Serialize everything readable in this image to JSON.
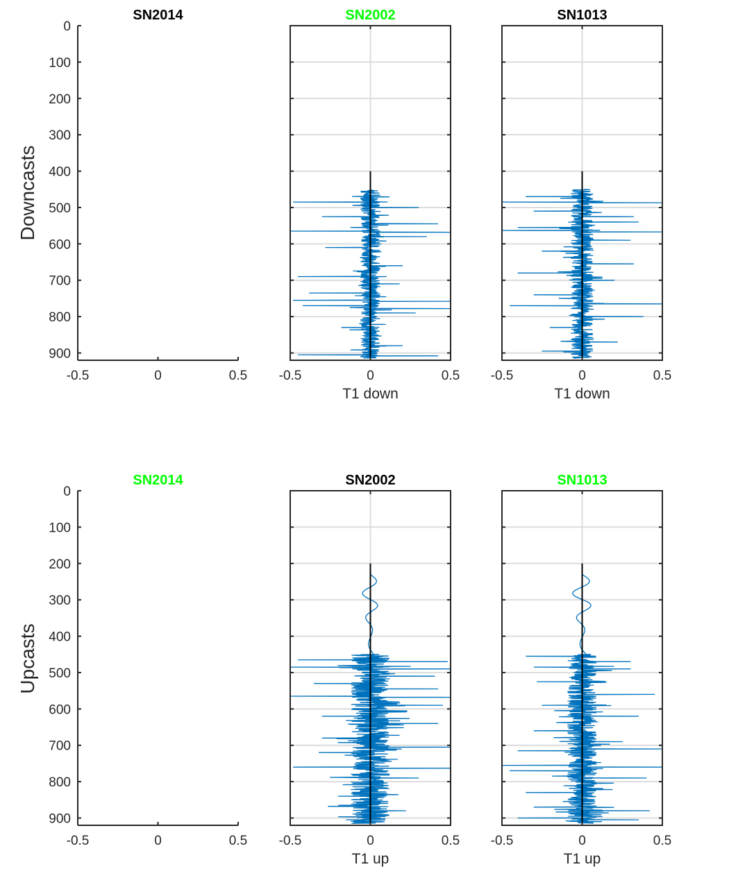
{
  "figure": {
    "row_labels": [
      "Downcasts",
      "Upcasts"
    ],
    "line_color": "#0072BD",
    "highlight_color": "#00FF00",
    "title_color": "#000000"
  },
  "chart_data": [
    {
      "type": "line",
      "row": 0,
      "col": 0,
      "title": "SN2014",
      "title_highlight": false,
      "xlabel": "",
      "ylabel": "Downcasts",
      "xlim": [
        -0.5,
        0.5
      ],
      "ylim": [
        920,
        0
      ],
      "xticks": [
        "-0.5",
        "0",
        "0.5"
      ],
      "yticks": [
        "0",
        "100",
        "200",
        "300",
        "400",
        "500",
        "600",
        "700",
        "800",
        "900"
      ],
      "box": false,
      "grid": false,
      "series": []
    },
    {
      "type": "line",
      "row": 0,
      "col": 1,
      "title": "SN2002",
      "title_highlight": true,
      "xlabel": "T1 down",
      "ylabel": "",
      "xlim": [
        -0.5,
        0.5
      ],
      "ylim": [
        920,
        0
      ],
      "xticks": [
        "-0.5",
        "0",
        "0.5"
      ],
      "yticks": [],
      "box": true,
      "grid": true,
      "reference_line": {
        "x": 0,
        "depth_from": 400,
        "depth_to": 920
      },
      "series": [
        {
          "depth_start": 452,
          "depth_end": 915,
          "typical_amplitude": 0.06,
          "spikes": [
            [
              485,
              -0.48
            ],
            [
              500,
              0.3
            ],
            [
              525,
              -0.3
            ],
            [
              545,
              0.42
            ],
            [
              565,
              -0.5
            ],
            [
              568,
              0.5
            ],
            [
              580,
              0.35
            ],
            [
              610,
              -0.28
            ],
            [
              660,
              0.2
            ],
            [
              690,
              -0.45
            ],
            [
              710,
              0.18
            ],
            [
              735,
              -0.38
            ],
            [
              755,
              -0.48
            ],
            [
              758,
              0.5
            ],
            [
              770,
              -0.42
            ],
            [
              778,
              0.5
            ],
            [
              790,
              0.28
            ],
            [
              830,
              -0.18
            ],
            [
              880,
              0.2
            ],
            [
              905,
              -0.45
            ],
            [
              908,
              0.42
            ]
          ]
        }
      ]
    },
    {
      "type": "line",
      "row": 0,
      "col": 2,
      "title": "SN1013",
      "title_highlight": false,
      "xlabel": "T1 down",
      "ylabel": "",
      "xlim": [
        -0.5,
        0.5
      ],
      "ylim": [
        920,
        0
      ],
      "xticks": [
        "-0.5",
        "0",
        "0.5"
      ],
      "yticks": [],
      "box": true,
      "grid": true,
      "reference_line": {
        "x": 0,
        "depth_from": 400,
        "depth_to": 920
      },
      "series": [
        {
          "depth_start": 450,
          "depth_end": 915,
          "typical_amplitude": 0.07,
          "spikes": [
            [
              470,
              -0.35
            ],
            [
              485,
              -0.5
            ],
            [
              487,
              0.5
            ],
            [
              510,
              -0.3
            ],
            [
              525,
              0.32
            ],
            [
              540,
              0.35
            ],
            [
              555,
              -0.4
            ],
            [
              563,
              -0.5
            ],
            [
              567,
              0.5
            ],
            [
              590,
              0.3
            ],
            [
              620,
              -0.25
            ],
            [
              655,
              0.32
            ],
            [
              680,
              -0.4
            ],
            [
              700,
              0.2
            ],
            [
              740,
              -0.3
            ],
            [
              765,
              0.5
            ],
            [
              770,
              -0.45
            ],
            [
              800,
              0.38
            ],
            [
              830,
              -0.2
            ],
            [
              870,
              0.22
            ],
            [
              895,
              -0.25
            ]
          ]
        }
      ]
    },
    {
      "type": "line",
      "row": 1,
      "col": 0,
      "title": "SN2014",
      "title_highlight": true,
      "xlabel": "",
      "ylabel": "Upcasts",
      "xlim": [
        -0.5,
        0.5
      ],
      "ylim": [
        920,
        0
      ],
      "xticks": [
        "-0.5",
        "0",
        "0.5"
      ],
      "yticks": [
        "0",
        "100",
        "200",
        "300",
        "400",
        "500",
        "600",
        "700",
        "800",
        "900"
      ],
      "box": false,
      "grid": false,
      "series": []
    },
    {
      "type": "line",
      "row": 1,
      "col": 1,
      "title": "SN2002",
      "title_highlight": false,
      "xlabel": "T1 up",
      "ylabel": "",
      "xlim": [
        -0.5,
        0.5
      ],
      "ylim": [
        920,
        0
      ],
      "xticks": [
        "-0.5",
        "0",
        "0.5"
      ],
      "yticks": [],
      "box": true,
      "grid": true,
      "reference_line": {
        "x": 0,
        "depth_from": 200,
        "depth_to": 920
      },
      "series": [
        {
          "depth_start": 450,
          "depth_end": 915,
          "typical_amplitude": 0.12,
          "spikes": [
            [
              465,
              -0.45
            ],
            [
              470,
              0.48
            ],
            [
              485,
              -0.5
            ],
            [
              490,
              0.5
            ],
            [
              510,
              0.4
            ],
            [
              530,
              -0.35
            ],
            [
              545,
              0.42
            ],
            [
              565,
              -0.5
            ],
            [
              568,
              0.5
            ],
            [
              590,
              0.45
            ],
            [
              620,
              -0.3
            ],
            [
              640,
              0.42
            ],
            [
              680,
              -0.3
            ],
            [
              705,
              0.5
            ],
            [
              720,
              -0.32
            ],
            [
              760,
              -0.48
            ],
            [
              763,
              0.5
            ],
            [
              790,
              0.3
            ],
            [
              840,
              -0.2
            ],
            [
              880,
              0.22
            ],
            [
              905,
              -0.15
            ]
          ],
          "wiggle": {
            "depth_start": 230,
            "depth_end": 450,
            "amplitude": 0.05
          }
        }
      ]
    },
    {
      "type": "line",
      "row": 1,
      "col": 2,
      "title": "SN1013",
      "title_highlight": true,
      "xlabel": "T1 up",
      "ylabel": "",
      "xlim": [
        -0.5,
        0.5
      ],
      "ylim": [
        920,
        0
      ],
      "xticks": [
        "-0.5",
        "0",
        "0.5"
      ],
      "yticks": [],
      "box": true,
      "grid": true,
      "reference_line": {
        "x": 0,
        "depth_from": 200,
        "depth_to": 920
      },
      "series": [
        {
          "depth_start": 450,
          "depth_end": 915,
          "typical_amplitude": 0.09,
          "spikes": [
            [
              455,
              -0.35
            ],
            [
              470,
              0.3
            ],
            [
              485,
              -0.3
            ],
            [
              490,
              0.3
            ],
            [
              525,
              -0.28
            ],
            [
              560,
              0.45
            ],
            [
              590,
              -0.25
            ],
            [
              620,
              0.35
            ],
            [
              660,
              -0.3
            ],
            [
              690,
              0.25
            ],
            [
              710,
              0.5
            ],
            [
              715,
              -0.4
            ],
            [
              755,
              -0.5
            ],
            [
              760,
              0.5
            ],
            [
              770,
              -0.45
            ],
            [
              790,
              0.4
            ],
            [
              830,
              -0.35
            ],
            [
              870,
              -0.3
            ],
            [
              880,
              0.42
            ],
            [
              900,
              -0.4
            ],
            [
              905,
              0.35
            ]
          ],
          "wiggle": {
            "depth_start": 230,
            "depth_end": 450,
            "amplitude": 0.06
          }
        }
      ]
    }
  ]
}
